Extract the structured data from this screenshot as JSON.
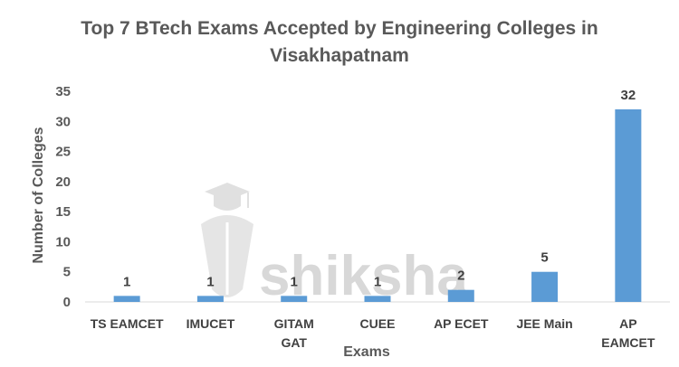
{
  "watermark": {
    "text": "shiksha"
  },
  "chart_data": {
    "type": "bar",
    "title_lines": [
      "Top 7 BTech Exams Accepted by Engineering Colleges in",
      "Visakhapatnam"
    ],
    "xlabel": "Exams",
    "ylabel": "Number of Colleges",
    "categories": [
      [
        "TS EAMCET"
      ],
      [
        "IMUCET"
      ],
      [
        "GITAM",
        "GAT"
      ],
      [
        "CUEE"
      ],
      [
        "AP ECET"
      ],
      [
        "JEE Main"
      ],
      [
        "AP",
        "EAMCET"
      ]
    ],
    "values": [
      1,
      1,
      1,
      1,
      2,
      5,
      32
    ],
    "data_labels": [
      "1",
      "1",
      "1",
      "1",
      "2",
      "5",
      "32"
    ],
    "ylim": [
      0,
      35
    ],
    "yticks": [
      0,
      5,
      10,
      15,
      20,
      25,
      30,
      35
    ],
    "grid": false,
    "legend": "none",
    "bar_color": "#5b9bd5",
    "axis_color": "#d9d9d9"
  }
}
